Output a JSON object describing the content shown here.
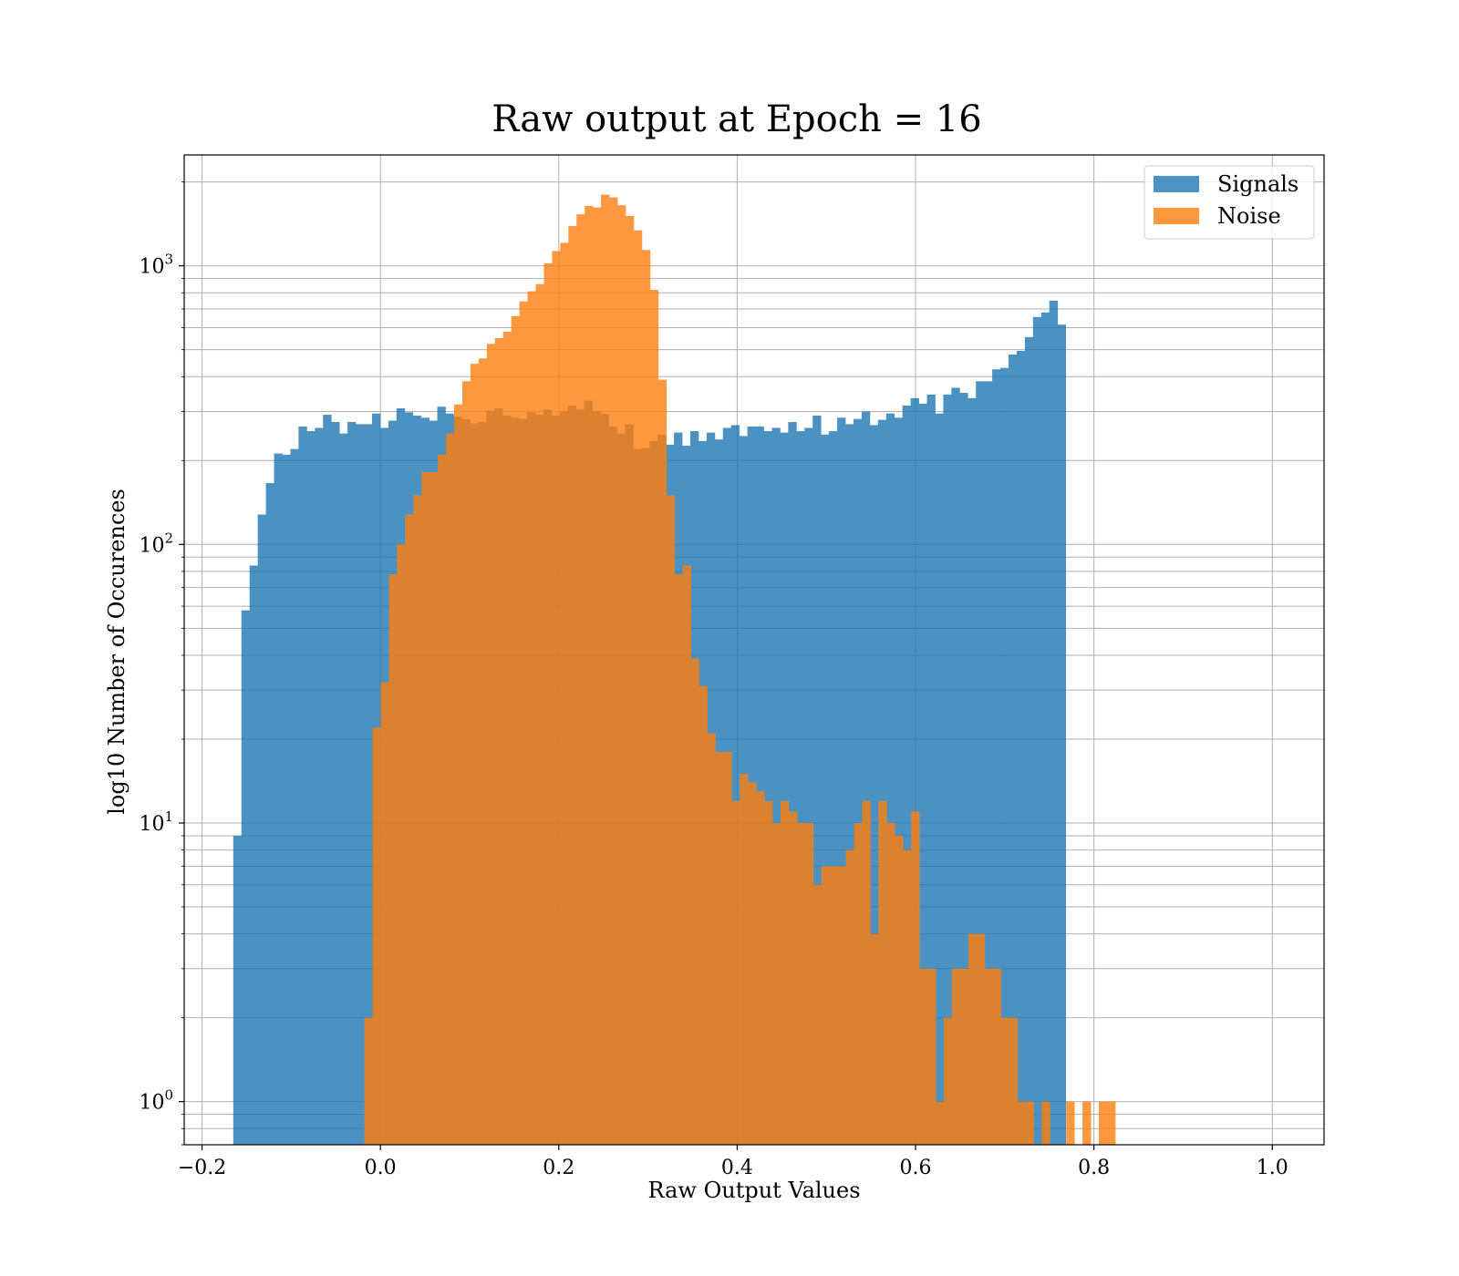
{
  "chart_data": {
    "type": "bar",
    "title": "Raw output at Epoch = 16",
    "xlabel": "Raw Output Values",
    "ylabel": "log10 Number of Occurences",
    "xlim": [
      -0.22,
      1.058
    ],
    "ylim": [
      0.7,
      2500
    ],
    "yscale": "log",
    "grid": true,
    "legend": "top-right",
    "x_ticks": [
      {
        "value": -0.2,
        "label": "−0.2"
      },
      {
        "value": 0.0,
        "label": "0.0"
      },
      {
        "value": 0.2,
        "label": "0.2"
      },
      {
        "value": 0.4,
        "label": "0.4"
      },
      {
        "value": 0.6,
        "label": "0.6"
      },
      {
        "value": 0.8,
        "label": "0.8"
      },
      {
        "value": 1.0,
        "label": "1.0"
      }
    ],
    "y_ticks": [
      {
        "value": 1,
        "base": "10",
        "exp": "0"
      },
      {
        "value": 10,
        "base": "10",
        "exp": "1"
      },
      {
        "value": 100,
        "base": "10",
        "exp": "2"
      },
      {
        "value": 1000,
        "base": "10",
        "exp": "3"
      }
    ],
    "series": [
      {
        "name": "Signals",
        "color": "#1f77b4",
        "opacity": 0.8,
        "bin_start": -0.165,
        "bin_width": 0.00915,
        "values": [
          9,
          58,
          84,
          128,
          166,
          212,
          210,
          220,
          265,
          255,
          262,
          292,
          275,
          250,
          275,
          270,
          270,
          295,
          262,
          278,
          308,
          298,
          290,
          285,
          278,
          312,
          295,
          288,
          282,
          272,
          275,
          302,
          308,
          290,
          285,
          282,
          298,
          292,
          305,
          290,
          300,
          315,
          305,
          328,
          300,
          295,
          265,
          250,
          270,
          220,
          222,
          235,
          248,
          228,
          252,
          226,
          255,
          235,
          252,
          238,
          262,
          268,
          245,
          265,
          265,
          255,
          262,
          252,
          275,
          255,
          262,
          290,
          248,
          255,
          285,
          270,
          282,
          300,
          268,
          280,
          295,
          285,
          315,
          335,
          320,
          345,
          295,
          345,
          365,
          350,
          335,
          385,
          385,
          425,
          430,
          480,
          495,
          555,
          655,
          680,
          750,
          615
        ]
      },
      {
        "name": "Noise",
        "color": "#ff7f0e",
        "opacity": 0.8,
        "bin_start": -0.018,
        "bin_width": 0.00915,
        "values": [
          2,
          22,
          32,
          78,
          100,
          128,
          150,
          182,
          182,
          210,
          250,
          318,
          385,
          445,
          465,
          525,
          550,
          580,
          660,
          745,
          810,
          860,
          1020,
          1130,
          1210,
          1390,
          1530,
          1640,
          1620,
          1800,
          1760,
          1650,
          1510,
          1340,
          1140,
          820,
          390,
          150,
          78,
          84,
          39,
          31,
          21,
          18,
          18,
          12,
          15,
          14,
          13,
          12,
          10,
          12,
          11,
          10,
          10,
          6,
          7,
          7,
          7,
          8,
          10,
          12,
          4,
          12,
          10,
          9,
          8,
          11,
          3,
          3,
          1,
          2,
          3,
          3,
          4,
          4,
          3,
          3,
          2,
          2,
          1,
          1,
          0,
          1,
          0,
          0,
          1,
          0,
          1,
          0,
          1,
          1
        ]
      }
    ]
  }
}
